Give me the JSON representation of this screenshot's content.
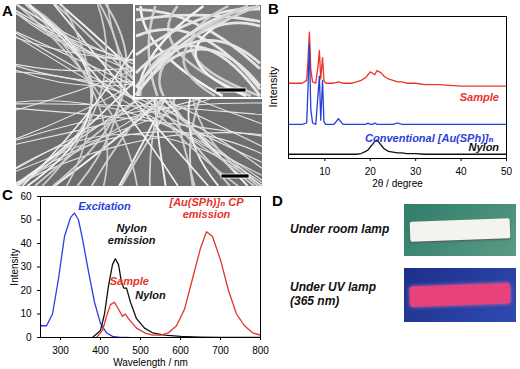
{
  "panel_labels": [
    "A",
    "B",
    "C",
    "D"
  ],
  "chart_data": [
    {
      "type": "line",
      "x_label": "2θ / degree",
      "y_label": "Intensity",
      "xlim": [
        2,
        50
      ],
      "xticks": [
        10,
        20,
        30,
        40,
        50
      ],
      "ylim": [
        0,
        100
      ],
      "tick_labels": "x",
      "x": [
        2,
        4,
        5,
        6,
        6.3,
        6.6,
        6.9,
        7.3,
        8,
        8.5,
        8.8,
        9.1,
        9.5,
        9.8,
        10.2,
        11,
        12,
        13,
        14,
        15,
        16,
        17,
        18,
        19,
        19.5,
        20,
        20.5,
        21,
        21.5,
        22,
        22.5,
        23,
        23.5,
        24,
        25,
        26,
        27,
        28,
        30,
        32,
        35,
        40,
        45,
        50
      ],
      "series": [
        {
          "color": "#e8342b",
          "values": [
            53,
            53,
            53,
            55,
            70,
            89,
            63,
            54,
            53,
            65,
            76,
            56,
            71,
            55,
            53,
            53,
            53,
            54,
            53,
            53,
            53,
            54,
            55,
            57,
            59,
            61,
            60,
            59,
            62,
            61,
            60,
            58,
            57,
            56,
            55,
            54,
            54,
            53,
            53,
            52,
            52,
            51,
            51,
            51
          ]
        },
        {
          "color": "#2a3ed8",
          "values": [
            24,
            24,
            24,
            25,
            50,
            81,
            35,
            25,
            24,
            45,
            58,
            27,
            55,
            26,
            24,
            24,
            24,
            28,
            24,
            24,
            24,
            24,
            24,
            24,
            25,
            24,
            24,
            25,
            24,
            24,
            24,
            24,
            24,
            24,
            24,
            25,
            24,
            24,
            24,
            24,
            24,
            24,
            24,
            24
          ]
        },
        {
          "color": "#111111",
          "values": [
            3,
            3,
            3,
            3,
            3,
            3,
            3,
            3,
            3,
            3,
            3,
            3,
            3,
            3,
            3,
            3,
            3,
            3,
            3,
            3,
            3,
            3,
            3.5,
            5,
            6,
            8,
            10,
            12,
            13,
            11,
            9,
            7,
            6,
            5,
            4.5,
            4,
            4,
            3.5,
            3.5,
            3,
            3,
            3,
            3,
            3
          ]
        }
      ],
      "annotations": [
        {
          "text": "Sample",
          "x": 44,
          "y": 43,
          "color": "#e8342b"
        },
        {
          "text": "Conventional [Au(SPh)]ₙ",
          "x": 33,
          "y": 14,
          "color": "#2a3ed8"
        },
        {
          "text": "Nylon",
          "x": 45,
          "y": 8,
          "color": "#111111"
        }
      ]
    },
    {
      "type": "line",
      "x_label": "Wavelength / nm",
      "y_label": "Intensity",
      "xlim": [
        250,
        800
      ],
      "xticks": [
        300,
        400,
        500,
        600,
        700,
        800
      ],
      "ylim": [
        0,
        60
      ],
      "yticks": [
        0,
        10,
        20,
        30,
        40,
        50,
        60
      ],
      "series": [
        {
          "color": "#2d3de0",
          "x": [
            250,
            265,
            280,
            295,
            310,
            325,
            335,
            345,
            355,
            370,
            385,
            400,
            415,
            430,
            450,
            470
          ],
          "values": [
            5,
            5,
            10,
            25,
            43,
            51,
            53,
            50,
            42,
            28,
            15,
            6,
            2,
            0.5,
            0,
            0
          ]
        },
        {
          "color": "#111111",
          "x": [
            380,
            400,
            410,
            420,
            430,
            437,
            445,
            452,
            458,
            465,
            475,
            490,
            510,
            530,
            560,
            600,
            650,
            700,
            800
          ],
          "values": [
            0,
            3,
            10,
            22,
            31,
            33.5,
            31,
            24,
            21,
            21,
            15,
            8,
            4,
            2,
            1,
            0.5,
            0.2,
            0,
            0
          ]
        },
        {
          "color": "#e5332a",
          "x": [
            390,
            405,
            415,
            425,
            435,
            445,
            455,
            462,
            470,
            490,
            510,
            530,
            550,
            570,
            590,
            610,
            630,
            650,
            665,
            680,
            700,
            720,
            740,
            760,
            780,
            800
          ],
          "values": [
            0,
            3,
            9,
            14,
            15,
            12,
            9,
            10,
            8,
            4,
            2,
            1,
            1,
            2,
            5,
            12,
            25,
            38,
            45,
            43,
            33,
            20,
            10,
            5,
            2,
            1
          ]
        }
      ],
      "annotations": [
        {
          "text": "Excitation",
          "x": 410,
          "y": 56,
          "color": "#2d3de0"
        },
        {
          "text": "Nylon\nemission",
          "x": 478,
          "y": 44,
          "color": "#111111"
        },
        {
          "text": "[Au(SPh)]ₙ CP\nemission",
          "x": 665,
          "y": 55,
          "color": "#e5332a"
        },
        {
          "text": "Sample",
          "x": 472,
          "y": 24,
          "color": "#e5332a"
        },
        {
          "text": "Nylon",
          "x": 525,
          "y": 18,
          "color": "#111111"
        }
      ]
    }
  ],
  "photos": {
    "room_lamp": "Under room lamp",
    "uv_lamp": "Under UV lamp (365 nm)"
  }
}
